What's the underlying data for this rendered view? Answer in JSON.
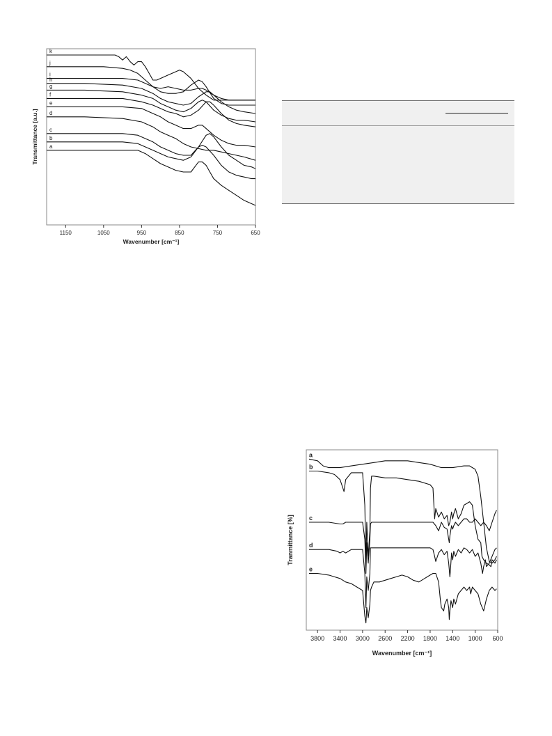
{
  "chart_data": [
    {
      "type": "line",
      "ylabel": "Transmittance [a.u.]",
      "xlabel": "Wavenumber [cm⁻¹]",
      "xlim": [
        1200,
        650
      ],
      "xticks": [
        1150,
        1050,
        950,
        850,
        750,
        650
      ],
      "series": [
        {
          "name": "a",
          "x": [
            1200,
            1100,
            1000,
            960,
            940,
            920,
            900,
            880,
            860,
            840,
            820,
            810,
            800,
            790,
            780,
            770,
            760,
            740,
            720,
            700,
            680,
            650
          ],
          "y": [
            0.43,
            0.43,
            0.43,
            0.43,
            0.41,
            0.38,
            0.35,
            0.33,
            0.31,
            0.3,
            0.3,
            0.33,
            0.36,
            0.36,
            0.34,
            0.3,
            0.26,
            0.22,
            0.19,
            0.16,
            0.13,
            0.1
          ]
        },
        {
          "name": "b",
          "x": [
            1200,
            1100,
            1000,
            960,
            940,
            920,
            900,
            880,
            860,
            840,
            820,
            800,
            790,
            780,
            760,
            740,
            720,
            700,
            680,
            660,
            650
          ],
          "y": [
            0.48,
            0.48,
            0.48,
            0.47,
            0.45,
            0.43,
            0.41,
            0.39,
            0.38,
            0.37,
            0.39,
            0.45,
            0.46,
            0.45,
            0.4,
            0.34,
            0.3,
            0.28,
            0.27,
            0.26,
            0.26
          ]
        },
        {
          "name": "c",
          "x": [
            1200,
            1100,
            1000,
            960,
            940,
            920,
            900,
            880,
            860,
            840,
            820,
            800,
            780,
            770,
            760,
            740,
            720,
            700,
            680,
            660,
            650
          ],
          "y": [
            0.53,
            0.53,
            0.53,
            0.52,
            0.5,
            0.48,
            0.45,
            0.43,
            0.41,
            0.4,
            0.4,
            0.45,
            0.52,
            0.53,
            0.51,
            0.45,
            0.4,
            0.37,
            0.34,
            0.33,
            0.32
          ]
        },
        {
          "name": "d",
          "x": [
            1200,
            1100,
            1000,
            950,
            920,
            900,
            880,
            860,
            840,
            820,
            800,
            780,
            760,
            740,
            720,
            700,
            680,
            650
          ],
          "y": [
            0.63,
            0.63,
            0.62,
            0.6,
            0.57,
            0.54,
            0.52,
            0.5,
            0.47,
            0.45,
            0.44,
            0.43,
            0.43,
            0.42,
            0.41,
            0.4,
            0.39,
            0.37
          ]
        },
        {
          "name": "e",
          "x": [
            1200,
            1100,
            1000,
            950,
            920,
            900,
            880,
            860,
            840,
            820,
            800,
            790,
            780,
            760,
            740,
            720,
            700,
            680,
            650
          ],
          "y": [
            0.69,
            0.69,
            0.69,
            0.68,
            0.65,
            0.63,
            0.6,
            0.58,
            0.56,
            0.56,
            0.58,
            0.58,
            0.56,
            0.52,
            0.49,
            0.47,
            0.46,
            0.46,
            0.45
          ]
        },
        {
          "name": "f",
          "x": [
            1200,
            1100,
            1000,
            950,
            920,
            900,
            880,
            860,
            840,
            820,
            800,
            780,
            770,
            760,
            740,
            720,
            700,
            680,
            650
          ],
          "y": [
            0.74,
            0.74,
            0.74,
            0.72,
            0.7,
            0.68,
            0.66,
            0.65,
            0.63,
            0.64,
            0.67,
            0.72,
            0.72,
            0.7,
            0.65,
            0.61,
            0.59,
            0.58,
            0.57
          ]
        },
        {
          "name": "g",
          "x": [
            1200,
            1100,
            1000,
            950,
            920,
            900,
            880,
            860,
            840,
            820,
            800,
            790,
            780,
            760,
            740,
            720,
            700,
            680,
            650
          ],
          "y": [
            0.79,
            0.79,
            0.78,
            0.76,
            0.74,
            0.71,
            0.69,
            0.67,
            0.66,
            0.68,
            0.72,
            0.73,
            0.72,
            0.67,
            0.64,
            0.62,
            0.61,
            0.61,
            0.6
          ]
        },
        {
          "name": "h",
          "x": [
            1200,
            1100,
            1000,
            950,
            920,
            900,
            880,
            860,
            840,
            820,
            800,
            780,
            770,
            760,
            740,
            720,
            700,
            680,
            650
          ],
          "y": [
            0.83,
            0.83,
            0.82,
            0.8,
            0.77,
            0.74,
            0.72,
            0.71,
            0.7,
            0.71,
            0.75,
            0.78,
            0.78,
            0.76,
            0.72,
            0.69,
            0.67,
            0.66,
            0.65
          ]
        },
        {
          "name": "i",
          "x": [
            1200,
            1100,
            1000,
            960,
            940,
            920,
            900,
            880,
            860,
            840,
            820,
            800,
            790,
            780,
            760,
            740,
            720,
            700,
            680,
            650
          ],
          "y": [
            0.86,
            0.86,
            0.86,
            0.85,
            0.83,
            0.81,
            0.78,
            0.77,
            0.77,
            0.78,
            0.82,
            0.85,
            0.84,
            0.81,
            0.74,
            0.71,
            0.7,
            0.7,
            0.7,
            0.7
          ]
        },
        {
          "name": "j",
          "x": [
            1200,
            1100,
            1050,
            1000,
            980,
            960,
            940,
            920,
            900,
            880,
            860,
            840,
            820,
            800,
            790,
            780,
            760,
            740,
            720,
            700,
            680,
            650
          ],
          "y": [
            0.93,
            0.93,
            0.93,
            0.92,
            0.91,
            0.89,
            0.85,
            0.81,
            0.8,
            0.81,
            0.8,
            0.79,
            0.79,
            0.8,
            0.8,
            0.79,
            0.76,
            0.74,
            0.73,
            0.73,
            0.73,
            0.73
          ]
        },
        {
          "name": "k",
          "x": [
            1200,
            1100,
            1050,
            1020,
            1010,
            1000,
            990,
            980,
            970,
            960,
            950,
            940,
            930,
            920,
            910,
            900,
            880,
            860,
            850,
            840,
            820,
            800,
            780,
            760,
            740,
            720,
            700,
            650
          ],
          "y": [
            1.0,
            1.0,
            1.0,
            1.0,
            0.99,
            0.97,
            0.99,
            0.96,
            0.94,
            0.96,
            0.96,
            0.93,
            0.89,
            0.85,
            0.85,
            0.86,
            0.88,
            0.9,
            0.91,
            0.9,
            0.86,
            0.8,
            0.76,
            0.73,
            0.73,
            0.73,
            0.73,
            0.73
          ]
        }
      ]
    },
    {
      "type": "line",
      "ylabel": "Tranmittance [%]",
      "xlabel": "Wavenumber [cm⁻¹]",
      "xlim": [
        4000,
        600
      ],
      "xticks": [
        3800,
        3400,
        3000,
        2600,
        2200,
        1800,
        1400,
        1000,
        600
      ],
      "series": [
        {
          "name": "a",
          "x": [
            3950,
            3800,
            3700,
            3600,
            3400,
            3200,
            3000,
            2800,
            2600,
            2400,
            2200,
            2000,
            1800,
            1600,
            1400,
            1200,
            1100,
            1000,
            950,
            900,
            850,
            800,
            750,
            700,
            650,
            620
          ],
          "y": [
            0.97,
            0.96,
            0.93,
            0.92,
            0.92,
            0.93,
            0.94,
            0.95,
            0.96,
            0.96,
            0.96,
            0.95,
            0.94,
            0.92,
            0.92,
            0.93,
            0.93,
            0.91,
            0.87,
            0.75,
            0.6,
            0.45,
            0.37,
            0.36,
            0.38,
            0.4
          ]
        },
        {
          "name": "b",
          "x": [
            3950,
            3800,
            3600,
            3500,
            3400,
            3350,
            3330,
            3300,
            3200,
            3000,
            2960,
            2940,
            2925,
            2900,
            2870,
            2860,
            2840,
            2800,
            2600,
            2400,
            2200,
            2000,
            1800,
            1750,
            1720,
            1700,
            1650,
            1600,
            1550,
            1500,
            1470,
            1450,
            1420,
            1400,
            1380,
            1350,
            1300,
            1250,
            1200,
            1100,
            1050,
            1000,
            950,
            900,
            880,
            850,
            800,
            750,
            720,
            700,
            650,
            620
          ],
          "y": [
            0.9,
            0.9,
            0.89,
            0.88,
            0.85,
            0.8,
            0.78,
            0.85,
            0.89,
            0.89,
            0.7,
            0.36,
            0.6,
            0.4,
            0.55,
            0.8,
            0.87,
            0.87,
            0.86,
            0.86,
            0.85,
            0.84,
            0.82,
            0.8,
            0.62,
            0.68,
            0.63,
            0.66,
            0.62,
            0.64,
            0.58,
            0.6,
            0.66,
            0.62,
            0.65,
            0.68,
            0.62,
            0.65,
            0.7,
            0.72,
            0.7,
            0.58,
            0.5,
            0.48,
            0.4,
            0.38,
            0.36,
            0.35,
            0.34,
            0.38,
            0.36,
            0.38
          ]
        },
        {
          "name": "c",
          "x": [
            3950,
            3800,
            3600,
            3400,
            3350,
            3300,
            3200,
            3000,
            2960,
            2940,
            2925,
            2900,
            2870,
            2860,
            2840,
            2800,
            2600,
            2400,
            2200,
            2000,
            1800,
            1750,
            1700,
            1650,
            1600,
            1550,
            1500,
            1460,
            1450,
            1420,
            1400,
            1380,
            1350,
            1300,
            1250,
            1200,
            1150,
            1100,
            1050,
            1000,
            950,
            900,
            850,
            800,
            750,
            720,
            700,
            650,
            620
          ],
          "y": [
            0.6,
            0.6,
            0.6,
            0.59,
            0.59,
            0.6,
            0.6,
            0.6,
            0.5,
            0.3,
            0.48,
            0.36,
            0.5,
            0.59,
            0.6,
            0.6,
            0.6,
            0.6,
            0.6,
            0.6,
            0.6,
            0.6,
            0.58,
            0.55,
            0.6,
            0.57,
            0.56,
            0.48,
            0.52,
            0.58,
            0.56,
            0.58,
            0.6,
            0.58,
            0.6,
            0.62,
            0.62,
            0.6,
            0.6,
            0.62,
            0.6,
            0.58,
            0.6,
            0.58,
            0.55,
            0.58,
            0.6,
            0.65,
            0.67
          ]
        },
        {
          "name": "d",
          "x": [
            3950,
            3800,
            3600,
            3450,
            3400,
            3350,
            3300,
            3200,
            3000,
            2960,
            2940,
            2925,
            2900,
            2870,
            2860,
            2840,
            2800,
            2600,
            2400,
            2200,
            2000,
            1800,
            1750,
            1720,
            1700,
            1650,
            1600,
            1550,
            1500,
            1470,
            1450,
            1440,
            1420,
            1400,
            1380,
            1350,
            1300,
            1250,
            1200,
            1150,
            1100,
            1050,
            1000,
            950,
            900,
            870,
            850,
            820,
            800,
            750,
            700,
            650,
            620
          ],
          "y": [
            0.44,
            0.44,
            0.44,
            0.43,
            0.42,
            0.43,
            0.42,
            0.44,
            0.44,
            0.3,
            0.1,
            0.28,
            0.2,
            0.3,
            0.45,
            0.45,
            0.45,
            0.45,
            0.45,
            0.45,
            0.45,
            0.45,
            0.44,
            0.4,
            0.37,
            0.42,
            0.44,
            0.41,
            0.43,
            0.36,
            0.28,
            0.32,
            0.42,
            0.38,
            0.43,
            0.4,
            0.44,
            0.42,
            0.45,
            0.44,
            0.42,
            0.44,
            0.4,
            0.42,
            0.36,
            0.3,
            0.34,
            0.38,
            0.34,
            0.36,
            0.4,
            0.44,
            0.45
          ]
        },
        {
          "name": "e",
          "x": [
            3950,
            3800,
            3600,
            3500,
            3400,
            3300,
            3200,
            3100,
            3000,
            2960,
            2940,
            2925,
            2900,
            2870,
            2860,
            2840,
            2800,
            2700,
            2600,
            2500,
            2400,
            2300,
            2200,
            2100,
            2000,
            1900,
            1800,
            1750,
            1700,
            1650,
            1620,
            1600,
            1560,
            1540,
            1500,
            1470,
            1460,
            1450,
            1430,
            1400,
            1380,
            1350,
            1300,
            1250,
            1200,
            1150,
            1100,
            1080,
            1050,
            1000,
            950,
            900,
            850,
            800,
            750,
            700,
            650,
            620
          ],
          "y": [
            0.3,
            0.3,
            0.29,
            0.28,
            0.27,
            0.25,
            0.24,
            0.22,
            0.2,
            0.05,
            0.01,
            0.1,
            0.04,
            0.12,
            0.2,
            0.22,
            0.25,
            0.25,
            0.26,
            0.27,
            0.28,
            0.29,
            0.28,
            0.26,
            0.25,
            0.27,
            0.29,
            0.3,
            0.3,
            0.25,
            0.15,
            0.1,
            0.08,
            0.12,
            0.15,
            0.1,
            0.03,
            0.08,
            0.14,
            0.1,
            0.15,
            0.12,
            0.18,
            0.2,
            0.22,
            0.2,
            0.22,
            0.18,
            0.22,
            0.2,
            0.18,
            0.12,
            0.08,
            0.15,
            0.2,
            0.22,
            0.2,
            0.21
          ]
        }
      ]
    }
  ],
  "colors": {
    "line": "#111111",
    "frame": "#888888",
    "table_bg": "#f0f0f0",
    "table_rule": "#6f6f6f"
  }
}
